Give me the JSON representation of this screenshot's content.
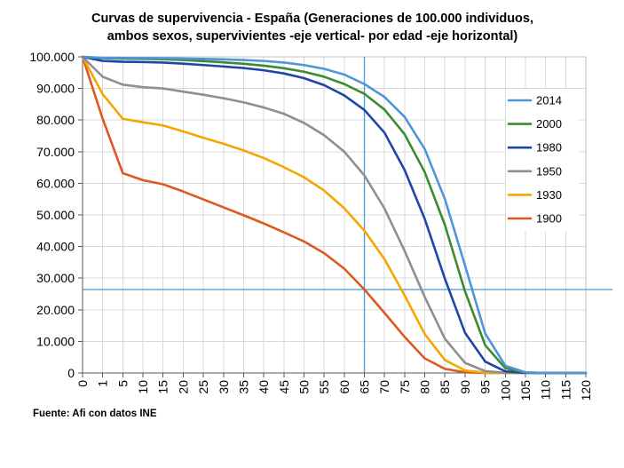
{
  "chart_data": {
    "type": "line",
    "title": [
      "Curvas de supervivencia - España (Generaciones de 100.000 individuos,",
      "ambos sexos, supervivientes -eje vertical- por edad -eje horizontal)"
    ],
    "x_categories": [
      "0",
      "1",
      "5",
      "10",
      "15",
      "20",
      "25",
      "30",
      "35",
      "40",
      "45",
      "50",
      "55",
      "60",
      "65",
      "70",
      "75",
      "80",
      "85",
      "90",
      "95",
      "100",
      "105",
      "110",
      "115",
      "120"
    ],
    "ylim": [
      0,
      100000
    ],
    "y_ticks": [
      0,
      10000,
      20000,
      30000,
      40000,
      50000,
      60000,
      70000,
      80000,
      90000,
      100000
    ],
    "y_tick_labels": [
      "0",
      "10.000",
      "20.000",
      "30.000",
      "40.000",
      "50.000",
      "60.000",
      "70.000",
      "80.000",
      "90.000",
      "100.000"
    ],
    "grid": true,
    "legend_position": "right",
    "series": [
      {
        "name": "2014",
        "color": "#4e95d9",
        "values": [
          100000,
          99700,
          99650,
          99600,
          99550,
          99450,
          99350,
          99200,
          99000,
          98700,
          98200,
          97400,
          96200,
          94400,
          91400,
          87300,
          81000,
          70800,
          55000,
          34000,
          12500,
          2300,
          200,
          0,
          0,
          0
        ]
      },
      {
        "name": "2000",
        "color": "#3d8b2f",
        "values": [
          100000,
          99550,
          99430,
          99350,
          99250,
          99000,
          98650,
          98250,
          97800,
          97200,
          96400,
          95300,
          93700,
          91400,
          88300,
          83300,
          75500,
          63500,
          46800,
          25800,
          8800,
          1500,
          150,
          0,
          0,
          0
        ]
      },
      {
        "name": "1980",
        "color": "#1f45a8",
        "values": [
          100000,
          98700,
          98450,
          98350,
          98200,
          97850,
          97400,
          96950,
          96450,
          95750,
          94750,
          93250,
          91050,
          87800,
          83200,
          76000,
          64200,
          48700,
          29800,
          12700,
          3600,
          500,
          50,
          0,
          0,
          0
        ]
      },
      {
        "name": "1950",
        "color": "#8f8f8f",
        "values": [
          100000,
          93700,
          91200,
          90400,
          90000,
          89000,
          88000,
          86900,
          85600,
          84000,
          82000,
          79100,
          75200,
          70000,
          62500,
          52000,
          38600,
          24000,
          10800,
          3200,
          600,
          50,
          0,
          0,
          0,
          0
        ]
      },
      {
        "name": "1930",
        "color": "#f5a700",
        "values": [
          100000,
          88200,
          80400,
          79300,
          78300,
          76400,
          74400,
          72500,
          70400,
          68000,
          65100,
          61900,
          57700,
          52100,
          45000,
          36000,
          24500,
          12300,
          4100,
          800,
          100,
          0,
          0,
          0,
          0,
          0
        ]
      },
      {
        "name": "1900",
        "color": "#dc5a1f",
        "values": [
          100000,
          80400,
          63200,
          61000,
          59700,
          57400,
          54900,
          52400,
          49900,
          47300,
          44500,
          41600,
          37900,
          33000,
          26400,
          19000,
          11400,
          4600,
          1300,
          200,
          0,
          0,
          0,
          0,
          0,
          0
        ]
      }
    ],
    "reference_lines": {
      "x_category": "65",
      "y_value": 26400,
      "color": "#5a9fdc"
    }
  },
  "source": "Fuente: Afi con datos INE"
}
